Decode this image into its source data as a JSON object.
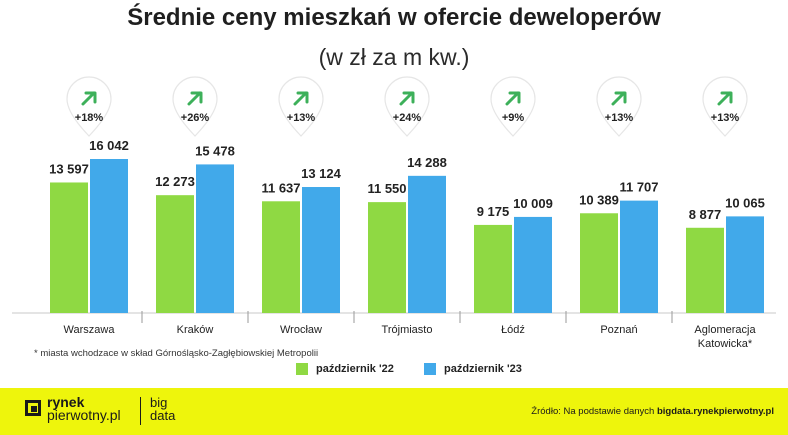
{
  "chart_data": {
    "type": "bar",
    "title": "Średnie ceny mieszkań w ofercie deweloperów",
    "subtitle": "(w zł za m kw.)",
    "categories": [
      "Warszawa",
      "Kraków",
      "Wrocław",
      "Trójmiasto",
      "Łódź",
      "Poznań",
      "Aglomeracja Katowicka*"
    ],
    "series": [
      {
        "name": "październik '22",
        "color": "#8fd943",
        "values": [
          13597,
          12273,
          11637,
          11550,
          9175,
          10389,
          8877
        ],
        "labels": [
          "13 597",
          "12 273",
          "11 637",
          "11 550",
          "9 175",
          "10 389",
          "8 877"
        ]
      },
      {
        "name": "październik '23",
        "color": "#41a9ea",
        "values": [
          16042,
          15478,
          13124,
          14288,
          10009,
          11707,
          10065
        ],
        "labels": [
          "16 042",
          "15 478",
          "13 124",
          "14 288",
          "10 009",
          "11 707",
          "10 065"
        ]
      }
    ],
    "changes": [
      "+18%",
      "+26%",
      "+13%",
      "+24%",
      "+9%",
      "+13%",
      "+13%"
    ],
    "change_icon": "arrow-up-right-icon",
    "ylim": [
      0,
      16042
    ],
    "grid": false,
    "legend_position": "bottom-center"
  },
  "footnote": "* miasta wchodzace w skład Górnośląsko-Zagłębiowskiej Metropolii",
  "footer": {
    "logo_line1": "rynek",
    "logo_line2": "pierwotny.pl",
    "secondary_line1": "big",
    "secondary_line2": "data",
    "source_prefix": "Źródło: Na podstawie danych",
    "source_site": "bigdata.rynekpierwotny.pl",
    "background": "#eef50c"
  }
}
